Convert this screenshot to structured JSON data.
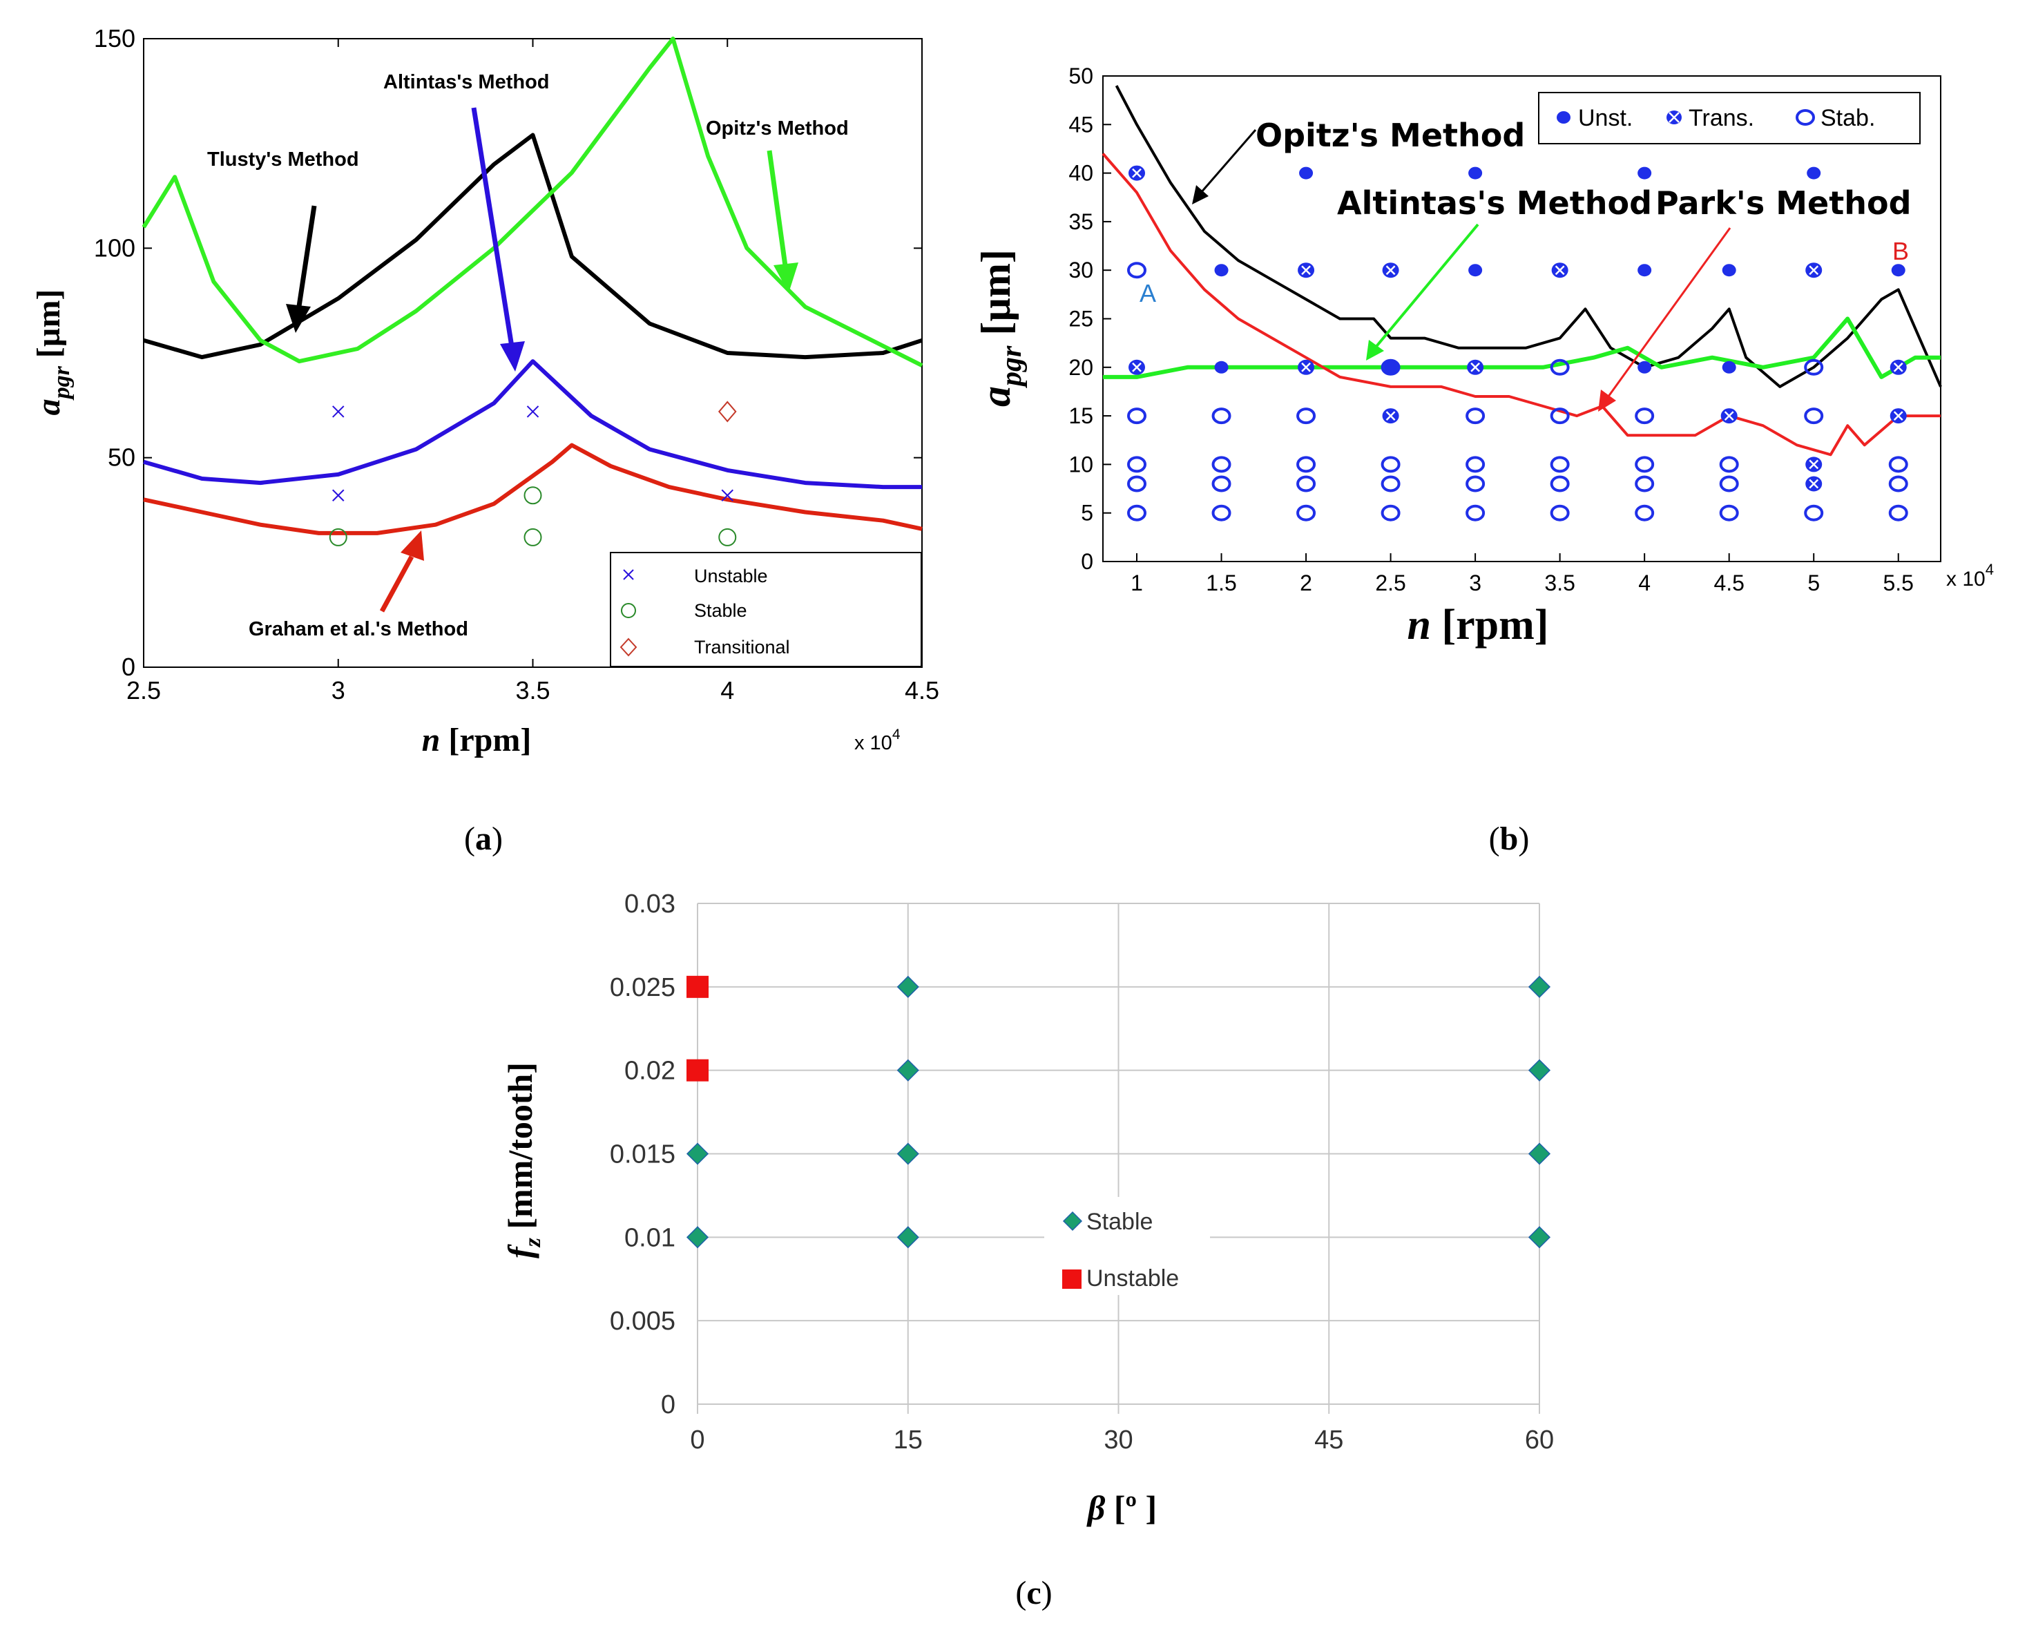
{
  "panels": {
    "a": {
      "caption": "(a)",
      "caption_letter": "a"
    },
    "b": {
      "caption": "(b)",
      "caption_letter": "b"
    },
    "c": {
      "caption": "(c)",
      "caption_letter": "c"
    }
  },
  "chart_data": [
    {
      "id": "a",
      "type": "line",
      "title": "",
      "xlabel": "n [rpm]",
      "ylabel": "a_pgr [µm]",
      "xlim": [
        25000,
        45000
      ],
      "ylim": [
        0,
        150
      ],
      "xticks": [
        25000,
        30000,
        35000,
        40000,
        45000
      ],
      "xtick_labels": [
        "2.5",
        "3",
        "3.5",
        "4",
        "4.5"
      ],
      "x_multiplier": "x 10^4",
      "yticks": [
        0,
        50,
        100,
        150
      ],
      "ytick_labels": [
        "0",
        "50",
        "100",
        "150"
      ],
      "grid": false,
      "legend_position": "bottom-right",
      "series": [
        {
          "name": "Tlusty's Method",
          "color": "#000000",
          "x": [
            25000,
            26500,
            28000,
            30000,
            32000,
            34000,
            35000,
            36000,
            38000,
            40000,
            42000,
            44000,
            45000
          ],
          "y": [
            78,
            74,
            77,
            88,
            102,
            120,
            127,
            98,
            82,
            75,
            74,
            75,
            78
          ]
        },
        {
          "name": "Opitz's Method",
          "color": "#33ee22",
          "x": [
            25000,
            25800,
            26800,
            28000,
            29000,
            30500,
            32000,
            34000,
            36000,
            38000,
            38600,
            39500,
            40500,
            42000,
            43500,
            45000
          ],
          "y": [
            105,
            117,
            92,
            78,
            73,
            76,
            85,
            100,
            118,
            143,
            150,
            122,
            100,
            86,
            79,
            72
          ]
        },
        {
          "name": "Altintas's Method",
          "color": "#2a10dd",
          "x": [
            25000,
            26500,
            28000,
            30000,
            32000,
            34000,
            35000,
            36500,
            38000,
            40000,
            42000,
            44000,
            45000
          ],
          "y": [
            49,
            45,
            44,
            46,
            52,
            63,
            73,
            60,
            52,
            47,
            44,
            43,
            43
          ]
        },
        {
          "name": "Graham et al.'s Method",
          "color": "#dd2211",
          "x": [
            25000,
            26500,
            28000,
            29500,
            31000,
            32500,
            34000,
            35500,
            36000,
            37000,
            38500,
            40000,
            42000,
            44000,
            45000
          ],
          "y": [
            40,
            37,
            34,
            32,
            32,
            34,
            39,
            49,
            53,
            48,
            43,
            40,
            37,
            35,
            33
          ]
        }
      ],
      "points": [
        {
          "label": "Unstable",
          "x": 30000,
          "y": 61
        },
        {
          "label": "Unstable",
          "x": 30000,
          "y": 41
        },
        {
          "label": "Unstable",
          "x": 35000,
          "y": 61
        },
        {
          "label": "Unstable",
          "x": 40000,
          "y": 41
        },
        {
          "label": "Stable",
          "x": 30000,
          "y": 31
        },
        {
          "label": "Stable",
          "x": 35000,
          "y": 41
        },
        {
          "label": "Stable",
          "x": 35000,
          "y": 31
        },
        {
          "label": "Stable",
          "x": 40000,
          "y": 31
        },
        {
          "label": "Transitional",
          "x": 40000,
          "y": 61
        }
      ],
      "legend": [
        "Unstable",
        "Stable",
        "Transitional"
      ],
      "annotations": [
        "Tlusty's Method",
        "Altintas's Method",
        "Opitz's Method",
        "Graham et al.'s Method"
      ]
    },
    {
      "id": "b",
      "type": "line",
      "title": "",
      "xlabel": "n [rpm]",
      "ylabel": "a_pgr [µm]",
      "xlim": [
        8000,
        57500
      ],
      "ylim": [
        0,
        50
      ],
      "xticks": [
        10000,
        15000,
        20000,
        25000,
        30000,
        35000,
        40000,
        45000,
        50000,
        55000
      ],
      "xtick_labels": [
        "1",
        "1.5",
        "2",
        "2.5",
        "3",
        "3.5",
        "4",
        "4.5",
        "5",
        "5.5"
      ],
      "x_multiplier": "x 10^4",
      "yticks": [
        0,
        5,
        10,
        15,
        20,
        25,
        30,
        35,
        40,
        45,
        50
      ],
      "ytick_labels": [
        "0",
        "5",
        "10",
        "15",
        "20",
        "25",
        "30",
        "35",
        "40",
        "45",
        "50"
      ],
      "grid": false,
      "legend_position": "top-right",
      "series": [
        {
          "name": "Opitz's Method",
          "color": "#000000",
          "x": [
            8800,
            10000,
            12000,
            14000,
            16000,
            18000,
            20000,
            22000,
            24000,
            25000,
            27000,
            29000,
            31000,
            33000,
            35000,
            36500,
            38000,
            40000,
            42000,
            44000,
            45000,
            46000,
            48000,
            50000,
            52000,
            54000,
            55000,
            56000,
            57500
          ],
          "y": [
            49,
            45,
            39,
            34,
            31,
            29,
            27,
            25,
            25,
            23,
            23,
            22,
            22,
            22,
            23,
            26,
            22,
            20,
            21,
            24,
            26,
            21,
            18,
            20,
            23,
            27,
            28,
            24,
            18
          ]
        },
        {
          "name": "Altintas's Method",
          "color": "#22ee22",
          "x": [
            8000,
            10000,
            13000,
            16000,
            19000,
            22000,
            25000,
            28000,
            31000,
            34000,
            37000,
            39000,
            41000,
            44000,
            47000,
            50000,
            52000,
            54000,
            56000,
            57500
          ],
          "y": [
            19,
            19,
            20,
            20,
            20,
            20,
            20,
            20,
            20,
            20,
            21,
            22,
            20,
            21,
            20,
            21,
            25,
            19,
            21,
            21
          ]
        },
        {
          "name": "Park's Method",
          "color": "#ee2222",
          "x": [
            8000,
            10000,
            12000,
            14000,
            16000,
            18000,
            20000,
            22000,
            25000,
            28000,
            30000,
            32000,
            34000,
            36000,
            37500,
            39000,
            41000,
            43000,
            45000,
            47000,
            49000,
            51000,
            52000,
            53000,
            55000,
            57500
          ],
          "y": [
            42,
            38,
            32,
            28,
            25,
            23,
            21,
            19,
            18,
            18,
            17,
            17,
            16,
            15,
            16,
            13,
            13,
            13,
            15,
            14,
            12,
            11,
            14,
            12,
            15,
            15
          ]
        }
      ],
      "points": [
        {
          "label": "Unst.",
          "x": [
            20000,
            30000,
            40000,
            50000
          ],
          "y": 40
        },
        {
          "label": "Trans.",
          "x": [
            10000
          ],
          "y": 40
        },
        {
          "label": "Unst.",
          "x": [
            15000,
            30000,
            40000,
            45000,
            55000
          ],
          "y": 30
        },
        {
          "label": "Trans.",
          "x": [
            20000,
            25000,
            35000,
            50000
          ],
          "y": 30
        },
        {
          "label": "Stab.",
          "x": [
            10000
          ],
          "y": 30
        },
        {
          "label": "Unst.",
          "x": [
            15000,
            25000,
            40000,
            45000
          ],
          "y": 20
        },
        {
          "label": "Trans.",
          "x": [
            10000,
            20000,
            30000,
            55000
          ],
          "y": 20
        },
        {
          "label": "Stab.",
          "x": [
            25000,
            35000,
            50000
          ],
          "y": 20
        },
        {
          "label": "Trans.",
          "x": [
            25000,
            45000,
            55000
          ],
          "y": 15
        },
        {
          "label": "Stab.",
          "x": [
            10000,
            15000,
            20000,
            30000,
            35000,
            40000,
            50000
          ],
          "y": 15
        },
        {
          "label": "Stab.",
          "x": [
            10000,
            15000,
            20000,
            25000,
            30000,
            35000,
            40000,
            45000,
            55000
          ],
          "y": 10
        },
        {
          "label": "Trans.",
          "x": [
            50000
          ],
          "y": 10
        },
        {
          "label": "Stab.",
          "x": [
            10000,
            15000,
            20000,
            25000,
            30000,
            35000,
            40000,
            45000,
            55000
          ],
          "y": 8
        },
        {
          "label": "Trans.",
          "x": [
            50000
          ],
          "y": 8
        },
        {
          "label": "Stab.",
          "x": [
            10000,
            15000,
            20000,
            25000,
            30000,
            35000,
            40000,
            45000,
            50000,
            55000
          ],
          "y": 5
        }
      ],
      "legend": [
        "Unst.",
        "Trans.",
        "Stab."
      ],
      "annotations": [
        "Opitz's Method",
        "Altintas's Method",
        "Park's Method",
        "A",
        "B"
      ]
    },
    {
      "id": "c",
      "type": "scatter",
      "title": "",
      "xlabel": "β [º ]",
      "ylabel": "f_z [mm/tooth]",
      "xlim": [
        0,
        60
      ],
      "ylim": [
        0,
        0.03
      ],
      "xticks": [
        0,
        15,
        30,
        45,
        60
      ],
      "xtick_labels": [
        "0",
        "15",
        "30",
        "45",
        "60"
      ],
      "yticks": [
        0,
        0.005,
        0.01,
        0.015,
        0.02,
        0.025,
        0.03
      ],
      "ytick_labels": [
        "0",
        "0.005",
        "0.01",
        "0.015",
        "0.02",
        "0.025",
        "0.03"
      ],
      "grid": true,
      "legend_position": "center",
      "series": [
        {
          "name": "Stable",
          "color": "#1a9e6e",
          "points": [
            [
              0,
              0.01
            ],
            [
              0,
              0.015
            ],
            [
              15,
              0.01
            ],
            [
              15,
              0.015
            ],
            [
              15,
              0.02
            ],
            [
              15,
              0.025
            ],
            [
              60,
              0.01
            ],
            [
              60,
              0.015
            ],
            [
              60,
              0.02
            ],
            [
              60,
              0.025
            ]
          ]
        },
        {
          "name": "Unstable",
          "color": "#ee1111",
          "points": [
            [
              0,
              0.02
            ],
            [
              0,
              0.025
            ]
          ]
        }
      ],
      "legend": [
        "Stable",
        "Unstable"
      ]
    }
  ]
}
